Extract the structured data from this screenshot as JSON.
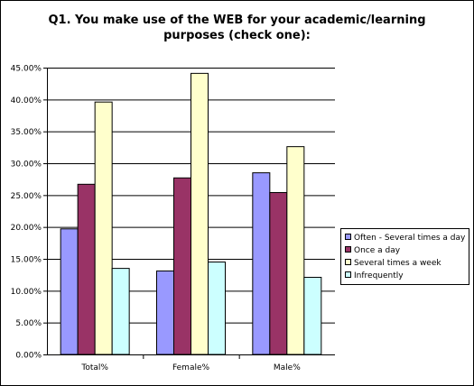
{
  "chart_data": {
    "type": "bar",
    "title_lines": [
      "Q1. You make use of the WEB for your academic/learning",
      "purposes (check one):"
    ],
    "categories": [
      "Total%",
      "Female%",
      "Male%"
    ],
    "series": [
      {
        "name": "Often - Several times a day",
        "color": "#9999ff",
        "values": [
          19.7,
          13.1,
          28.5
        ]
      },
      {
        "name": "Once a day",
        "color": "#993366",
        "values": [
          26.7,
          27.7,
          25.4
        ]
      },
      {
        "name": "Several times a week",
        "color": "#ffffcc",
        "values": [
          39.6,
          44.1,
          32.6
        ]
      },
      {
        "name": "Infrequently",
        "color": "#ccffff",
        "values": [
          13.5,
          14.5,
          12.1
        ]
      }
    ],
    "ylim": [
      0,
      45
    ],
    "y_ticks": [
      "0.00%",
      "5.00%",
      "10.00%",
      "15.00%",
      "20.00%",
      "25.00%",
      "30.00%",
      "35.00%",
      "40.00%",
      "45.00%"
    ],
    "y_tick_values": [
      0,
      5,
      10,
      15,
      20,
      25,
      30,
      35,
      40,
      45
    ],
    "grid": "horizontal",
    "legend_position": "right"
  }
}
